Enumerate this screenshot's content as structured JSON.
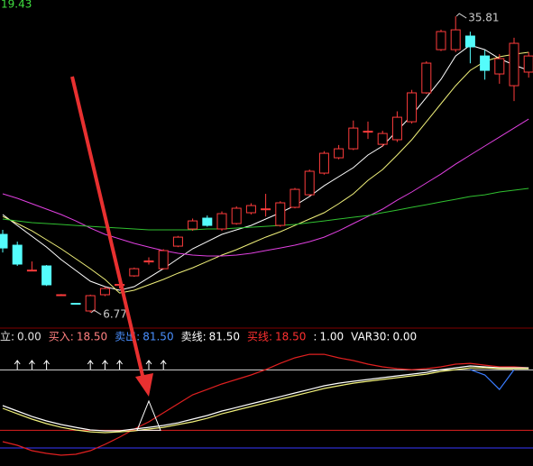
{
  "top_label": 19.43,
  "chart_data": [
    {
      "type": "candlestick",
      "up_color": "#ff3c3c",
      "down_color": "#54fcfc",
      "ylim": [
        5.45,
        37.4
      ],
      "open": [
        14.45,
        13.39,
        10.95,
        11.36,
        8.54,
        7.7,
        6.95,
        8.54,
        9.45,
        10.39,
        11.75,
        11.09,
        13.3,
        14.98,
        16.04,
        14.98,
        15.51,
        16.57,
        16.9,
        15.33,
        17.1,
        18.33,
        20.45,
        21.95,
        22.83,
        24.5,
        23.27,
        23.72,
        25.48,
        28.31,
        32.54,
        32.54,
        33.87,
        31.92,
        30.16,
        29.01,
        30.34
      ],
      "close": [
        13.12,
        11.54,
        10.95,
        9.51,
        8.54,
        7.65,
        8.45,
        9.15,
        9.55,
        11.09,
        11.85,
        12.86,
        14.18,
        15.77,
        15.33,
        16.48,
        17.01,
        17.27,
        16.95,
        17.54,
        18.86,
        20.63,
        22.39,
        22.83,
        24.86,
        24.55,
        24.33,
        25.92,
        28.31,
        31.22,
        34.31,
        34.48,
        32.81,
        30.51,
        31.66,
        33.16,
        31.92
      ],
      "high": [
        14.89,
        13.74,
        11.8,
        11.45,
        8.6,
        7.75,
        8.55,
        9.3,
        9.85,
        11.2,
        12.2,
        13.0,
        14.3,
        16.0,
        16.3,
        16.7,
        17.2,
        17.5,
        18.42,
        17.7,
        19.0,
        20.8,
        22.6,
        23.2,
        25.6,
        25.5,
        24.6,
        26.5,
        28.6,
        31.4,
        34.5,
        35.81,
        34.3,
        32.5,
        32.1,
        33.7,
        32.3
      ],
      "low": [
        12.68,
        11.36,
        10.9,
        9.4,
        8.5,
        7.6,
        6.77,
        8.4,
        9.15,
        10.3,
        11.5,
        11.0,
        13.2,
        14.8,
        15.2,
        14.8,
        15.4,
        16.4,
        16.2,
        15.2,
        17.0,
        18.2,
        20.3,
        21.8,
        22.7,
        23.8,
        23.0,
        23.5,
        25.3,
        28.2,
        32.4,
        32.3,
        31.2,
        29.6,
        29.2,
        27.5,
        29.8
      ],
      "lines": [
        {
          "color": "#ffffff",
          "values": [
            16.39,
            15.33,
            14.27,
            13.21,
            11.98,
            10.92,
            9.86,
            9.33,
            8.98,
            9.33,
            10.21,
            11.09,
            12.07,
            13.04,
            13.74,
            14.45,
            14.89,
            15.33,
            15.95,
            16.57,
            17.27,
            18.16,
            19.21,
            20.1,
            20.98,
            22.22,
            23.1,
            24.6,
            26.1,
            27.86,
            29.63,
            31.92,
            32.98,
            32.54,
            31.66,
            31.04,
            30.51
          ]
        },
        {
          "color": "#f0f07a",
          "values": [
            16.21,
            15.51,
            14.8,
            13.92,
            13.04,
            12.07,
            11.09,
            10.04,
            8.71,
            8.98,
            9.51,
            10.04,
            10.65,
            11.18,
            11.8,
            12.42,
            12.95,
            13.57,
            14.18,
            14.71,
            15.33,
            15.95,
            16.57,
            17.45,
            18.42,
            19.74,
            20.8,
            22.22,
            23.72,
            25.48,
            27.25,
            29.01,
            30.51,
            31.39,
            31.84,
            32.1,
            32.28
          ]
        },
        {
          "color": "#e040e0",
          "values": [
            18.42,
            17.98,
            17.45,
            16.92,
            16.39,
            15.77,
            15.07,
            14.45,
            14.01,
            13.57,
            13.21,
            12.86,
            12.6,
            12.42,
            12.33,
            12.33,
            12.42,
            12.6,
            12.86,
            13.12,
            13.39,
            13.74,
            14.18,
            14.8,
            15.51,
            16.21,
            16.92,
            17.8,
            18.6,
            19.48,
            20.36,
            21.33,
            22.22,
            23.1,
            23.98,
            24.86,
            25.74
          ]
        },
        {
          "color": "#30c030",
          "values": [
            15.95,
            15.77,
            15.6,
            15.51,
            15.42,
            15.33,
            15.24,
            15.15,
            15.07,
            14.98,
            14.89,
            14.89,
            14.89,
            14.89,
            14.98,
            14.98,
            15.07,
            15.15,
            15.24,
            15.33,
            15.42,
            15.6,
            15.77,
            15.95,
            16.13,
            16.3,
            16.57,
            16.83,
            17.1,
            17.36,
            17.63,
            17.89,
            18.16,
            18.33,
            18.6,
            18.78,
            18.95
          ]
        }
      ],
      "annotations": [
        {
          "index": 31,
          "value": 35.81
        },
        {
          "index": 6,
          "value": 6.77
        }
      ]
    },
    {
      "type": "line",
      "ylim": [
        -18.8,
        105.4
      ],
      "legend": [
        {
          "name": "立:",
          "value": {
            "value": 0,
            "label": "0.00"
          },
          "color": "#e0e0e0"
        },
        {
          "name": "买入:",
          "value": {
            "value": 18.5,
            "label": "18.50"
          },
          "color": "#ff8080"
        },
        {
          "name": "卖出:",
          "value": {
            "value": 81.5,
            "label": "81.50"
          },
          "color": "#4a90ff"
        },
        {
          "name": "卖线:",
          "value": {
            "value": 81.5,
            "label": "81.50"
          },
          "color": "#ffffff"
        },
        {
          "name": "买线:",
          "value": {
            "value": 18.5,
            "label": "18.50"
          },
          "color": "#ff3030"
        },
        {
          "name": ":",
          "value": {
            "value": 1,
            "label": "1.00"
          },
          "color": "#ffffff"
        },
        {
          "name": "VAR30:",
          "value": {
            "value": 0,
            "label": "0.00"
          },
          "color": "#ffffff"
        }
      ],
      "reference_lines": [
        {
          "value": 81.5,
          "color": "#d8d8d8"
        },
        {
          "value": 18.5,
          "color": "#e02020"
        },
        {
          "value": 0,
          "color": "#3838ff"
        }
      ],
      "series": [
        {
          "color": "#e02020",
          "values": [
            6.6,
            2.8,
            -2.8,
            -5.6,
            -7.5,
            -6.6,
            -2.8,
            3.8,
            11.3,
            19.8,
            27.3,
            36.7,
            46.1,
            55.5,
            61.1,
            66.8,
            71.5,
            76.2,
            81.8,
            88.4,
            94.1,
            97.8,
            97.8,
            94.1,
            91.3,
            87.5,
            84.7,
            82.8,
            81.8,
            82.8,
            84.7,
            87.5,
            88.4,
            86.5,
            84.7,
            84.7,
            83.7
          ]
        },
        {
          "color": "#ffffff",
          "values": [
            44.2,
            38.6,
            32.9,
            28.2,
            24.5,
            21.6,
            18.8,
            17.9,
            17.9,
            19.8,
            21.6,
            23.5,
            26.3,
            30.1,
            33.9,
            38.6,
            42.3,
            46.1,
            49.9,
            53.6,
            57.4,
            61.1,
            64.9,
            67.7,
            69.6,
            71.5,
            73.4,
            75.3,
            77.1,
            79.0,
            81.8,
            83.7,
            85.6,
            84.7,
            83.7,
            83.7,
            83.7
          ]
        },
        {
          "color": "#f0f07a",
          "values": [
            41.4,
            35.7,
            30.1,
            25.4,
            21.6,
            18.8,
            16.9,
            16.0,
            16.9,
            17.9,
            19.8,
            21.6,
            24.5,
            27.3,
            31.0,
            35.7,
            39.5,
            43.3,
            47.0,
            50.8,
            54.6,
            58.3,
            62.1,
            64.9,
            67.7,
            69.6,
            71.5,
            73.4,
            75.3,
            77.1,
            80.0,
            81.8,
            83.7,
            83.7,
            82.8,
            82.8,
            82.8
          ]
        },
        {
          "color": "#3a7cff",
          "values": [
            null,
            null,
            null,
            null,
            null,
            null,
            null,
            null,
            null,
            null,
            null,
            null,
            null,
            null,
            null,
            null,
            null,
            null,
            null,
            null,
            null,
            null,
            null,
            null,
            null,
            null,
            null,
            null,
            null,
            null,
            null,
            null,
            81.8,
            76.2,
            61.1,
            81.8,
            null
          ]
        }
      ],
      "signals": [
        1,
        2,
        3,
        6,
        7,
        8,
        10,
        11
      ],
      "triangle": {
        "index": 10,
        "values": [
          18.5,
          49
        ]
      }
    }
  ]
}
